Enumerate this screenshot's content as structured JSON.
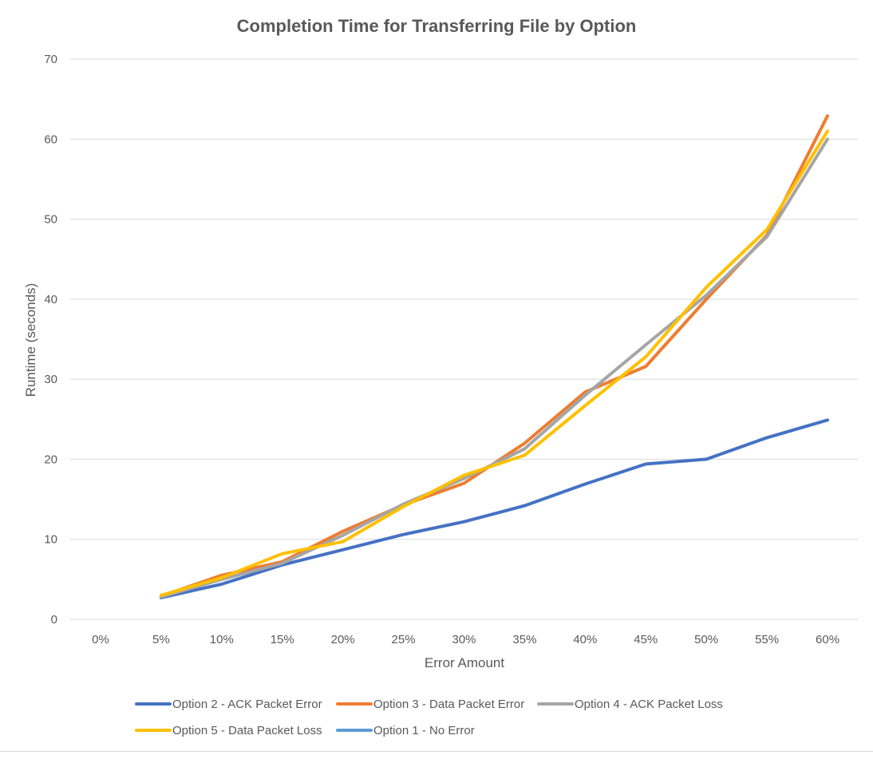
{
  "chart_data": {
    "type": "line",
    "title": "Completion Time for Transferring File by Option",
    "xlabel": "Error Amount",
    "ylabel": "Runtime (seconds)",
    "categories": [
      "0%",
      "5%",
      "10%",
      "15%",
      "20%",
      "25%",
      "30%",
      "35%",
      "40%",
      "45%",
      "50%",
      "55%",
      "60%"
    ],
    "y_ticks": [
      "0",
      "10",
      "20",
      "30",
      "40",
      "50",
      "60",
      "70"
    ],
    "ylim": [
      0,
      70
    ],
    "grid": true,
    "legend_position": "bottom",
    "series": [
      {
        "name": "Option 2 - ACK Packet Error",
        "color": "#4472c4",
        "values": [
          null,
          2.7,
          4.4,
          6.8,
          8.7,
          10.6,
          12.2,
          14.2,
          16.9,
          19.4,
          20.0,
          22.7,
          24.9
        ]
      },
      {
        "name": "Option 3 - Data Packet Error",
        "color": "#ed7d31",
        "values": [
          null,
          2.9,
          5.5,
          7.2,
          11.0,
          14.3,
          17.0,
          22.0,
          28.4,
          31.6,
          40.0,
          48.0,
          62.9
        ]
      },
      {
        "name": "Option 4 - ACK Packet Loss",
        "color": "#a5a5a5",
        "values": [
          null,
          2.8,
          5.0,
          7.0,
          10.5,
          14.4,
          17.6,
          21.3,
          28.0,
          34.3,
          40.5,
          47.8,
          60.0
        ]
      },
      {
        "name": "Option 5 - Data Packet Loss",
        "color": "#ffc000",
        "values": [
          null,
          3.0,
          5.2,
          8.2,
          9.7,
          14.1,
          18.0,
          20.5,
          26.7,
          32.8,
          41.5,
          48.7,
          61.0
        ]
      },
      {
        "name": "Option 1 - No Error",
        "color": "#5b9bd5",
        "values": [
          null,
          null,
          null,
          null,
          null,
          null,
          null,
          null,
          null,
          null,
          null,
          null,
          null
        ]
      }
    ]
  }
}
